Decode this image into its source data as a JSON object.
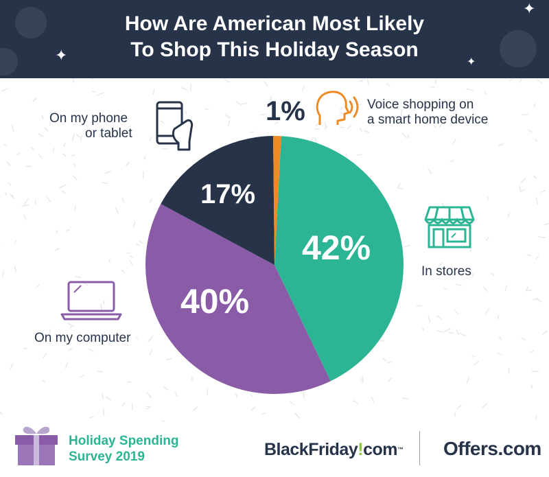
{
  "header": {
    "title_line1": "How Are American Most Likely",
    "title_line2": "To Shop This Holiday Season",
    "background": "#263349"
  },
  "chart_data": {
    "type": "pie",
    "title": "How Are American Most Likely To Shop This Holiday Season",
    "slices": [
      {
        "label": "In stores",
        "value": 42,
        "display": "42%",
        "color": "#2bb595"
      },
      {
        "label": "On my computer",
        "value": 40,
        "display": "40%",
        "color": "#8a5ca8"
      },
      {
        "label": "On my phone or tablet",
        "value": 17,
        "display": "17%",
        "color": "#263349"
      },
      {
        "label": "Voice shopping on a smart home device",
        "value": 1,
        "display": "1%",
        "color": "#f08a24"
      }
    ]
  },
  "labels": {
    "stores": "In stores",
    "computer": "On my computer",
    "phone_line1": "On my phone",
    "phone_line2": "or tablet",
    "voice_line1": "Voice shopping on",
    "voice_line2": "a smart home device",
    "voice_pct": "1%"
  },
  "icons": {
    "phone": "smartphone-hand-icon",
    "computer": "laptop-icon",
    "store": "storefront-icon",
    "voice": "voice-head-icon",
    "gift": "gift-icon"
  },
  "footer": {
    "survey_line1": "Holiday Spending",
    "survey_line2": "Survey 2019",
    "brand1_main": "BlackFriday",
    "brand1_bang": "!",
    "brand1_tld": "com",
    "brand1_tm": "™",
    "brand2": "Offers.com"
  }
}
